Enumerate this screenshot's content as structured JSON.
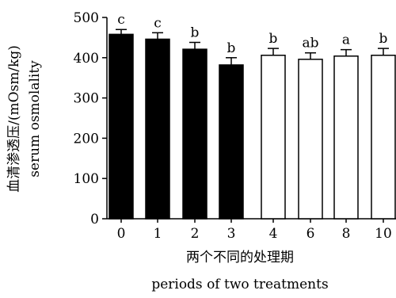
{
  "chart_data": {
    "type": "bar",
    "categories": [
      "0",
      "1",
      "2",
      "3",
      "4",
      "6",
      "8",
      "10"
    ],
    "values": [
      458,
      446,
      421,
      382,
      406,
      396,
      404,
      406
    ],
    "errors": [
      12,
      16,
      17,
      18,
      17,
      16,
      16,
      17
    ],
    "labels": [
      "c",
      "c",
      "b",
      "b",
      "b",
      "ab",
      "a",
      "b"
    ],
    "fills": [
      "black",
      "black",
      "black",
      "black",
      "white",
      "white",
      "white",
      "white"
    ],
    "ylabel_cn": "血清渗透压/(mOsm/kg)",
    "ylabel_en": "serum osmolality",
    "xlabel_cn": "两个不同的处理期",
    "xlabel_en": "periods of two treatments",
    "ylim": [
      0,
      500
    ],
    "yticks": [
      "0",
      "100",
      "200",
      "300",
      "400",
      "500"
    ],
    "grid": false
  }
}
